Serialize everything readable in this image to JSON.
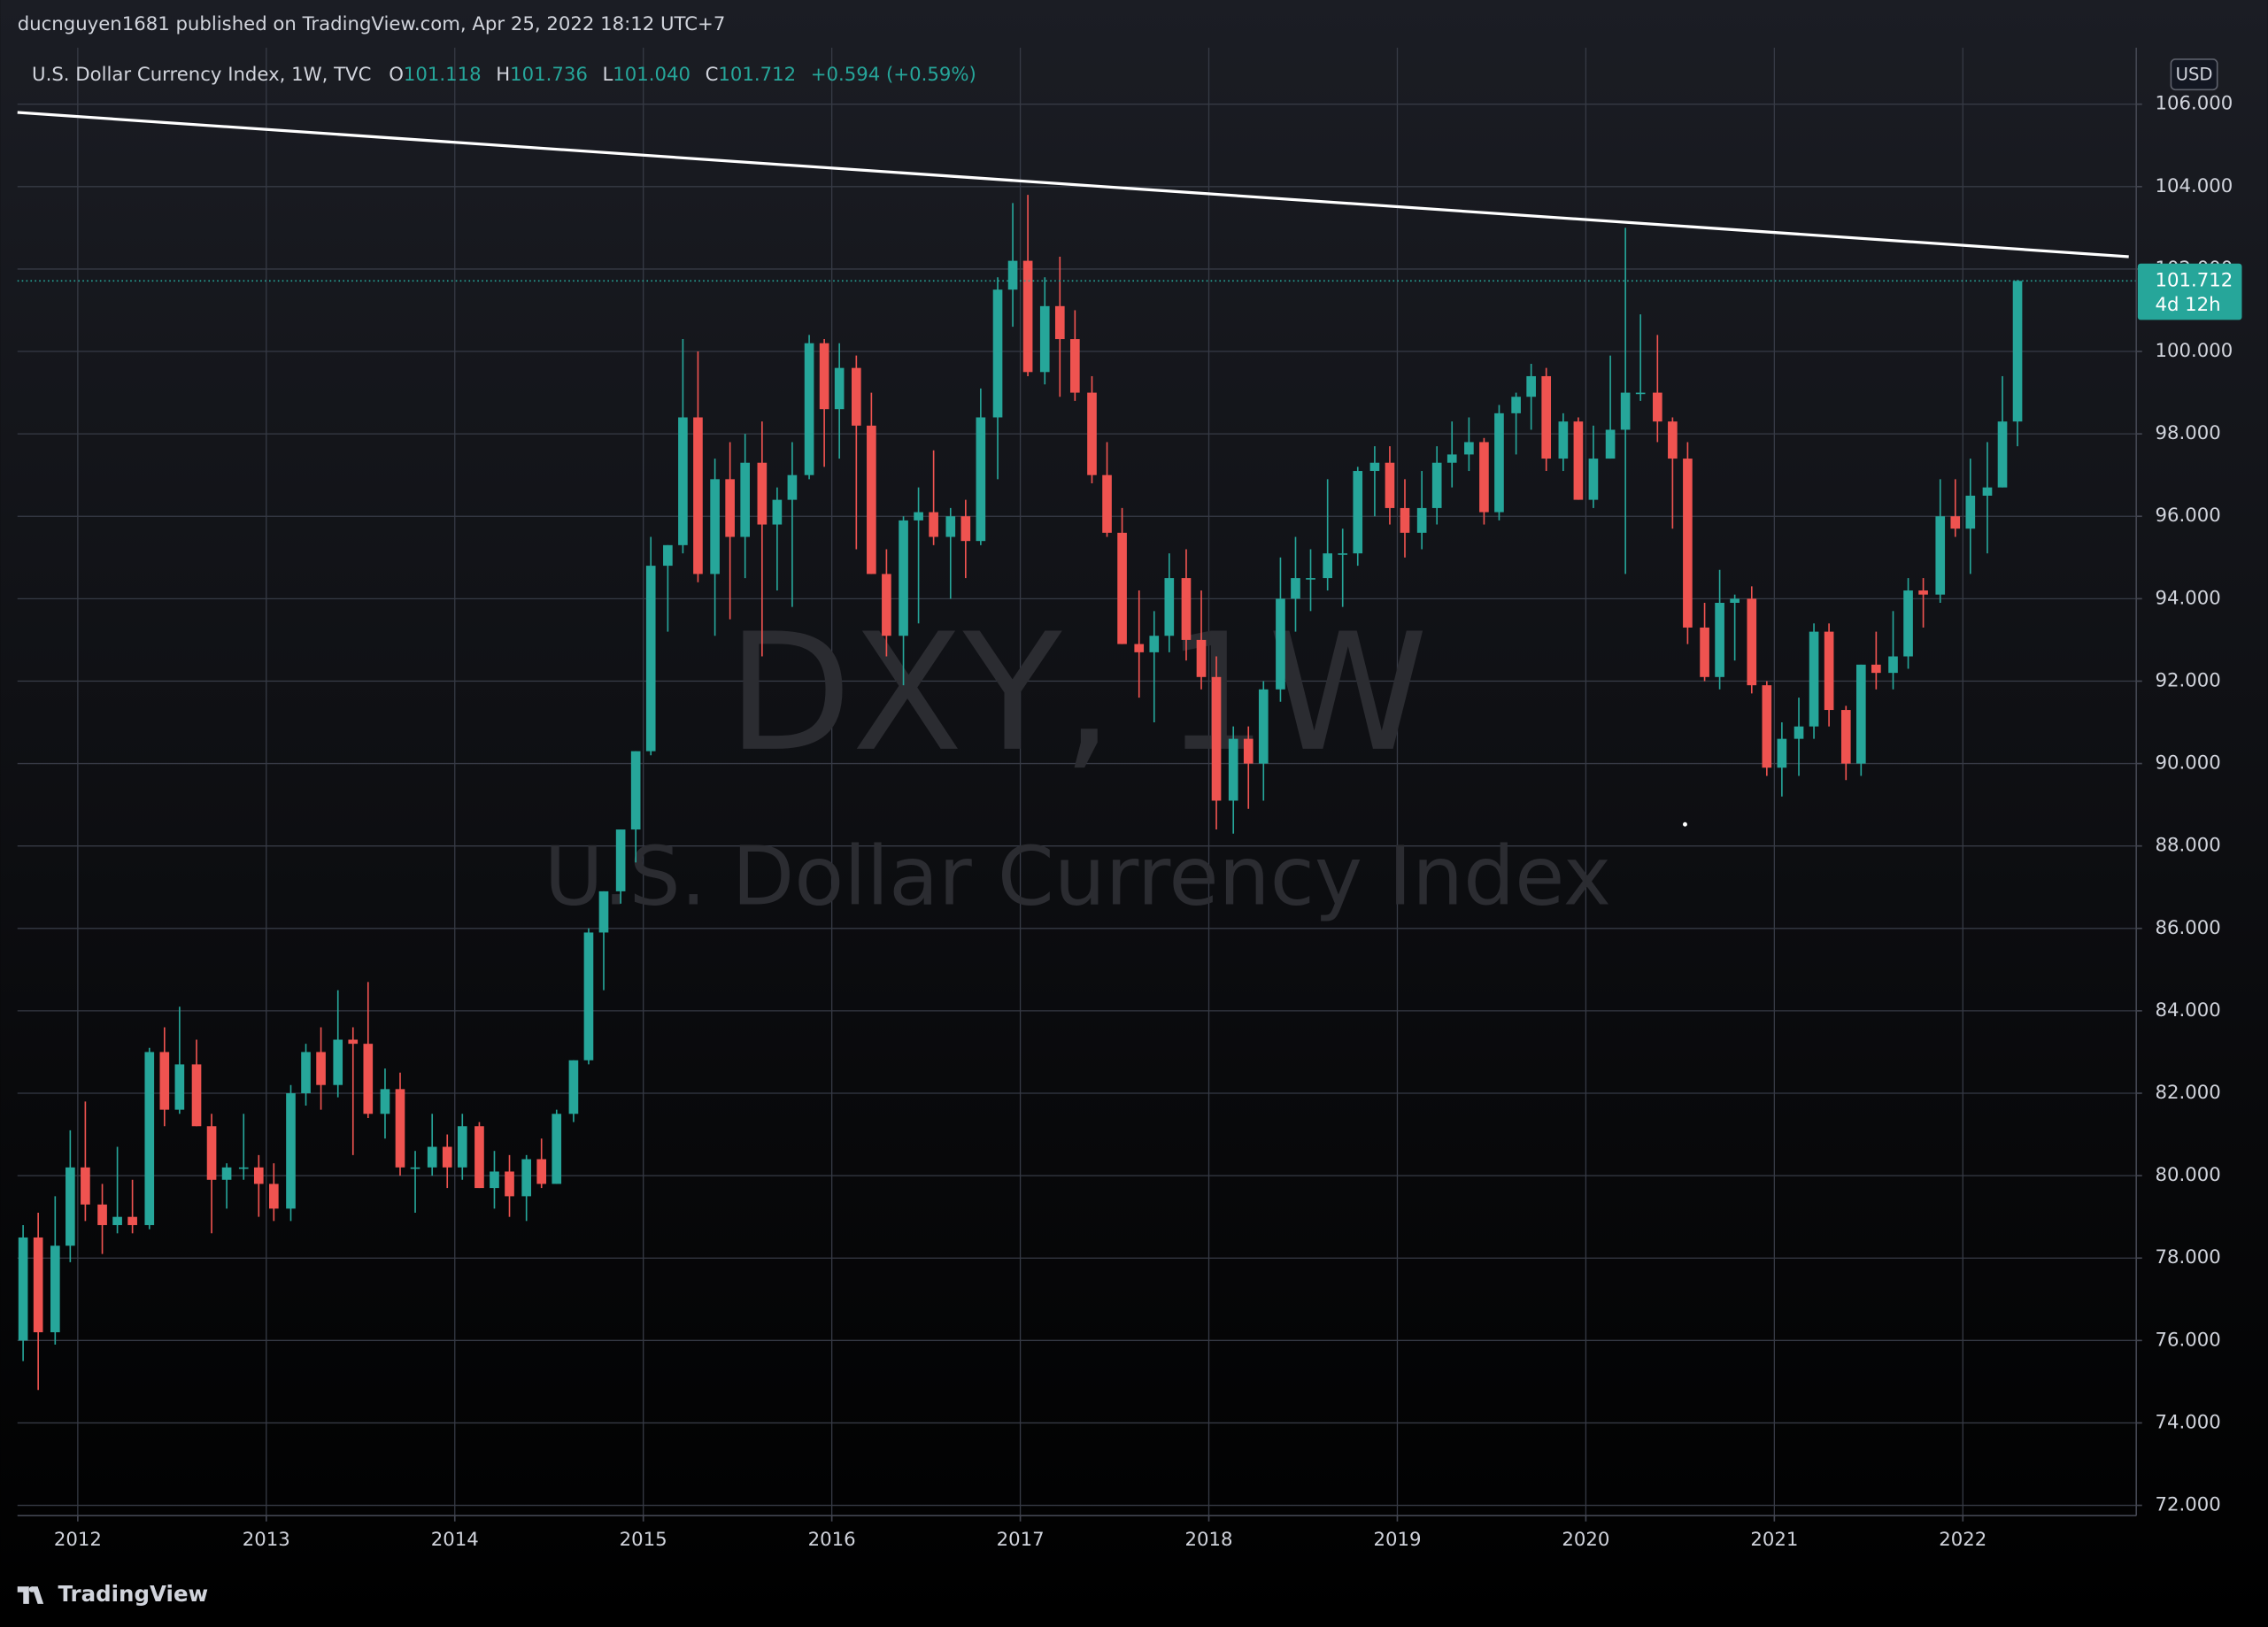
{
  "header": {
    "text": "ducnguyen1681 published on TradingView.com, Apr 25, 2022 18:12 UTC+7"
  },
  "legend": {
    "name": "U.S. Dollar Currency Index, 1W, TVC",
    "items": [
      {
        "label": "O",
        "value": "101.118"
      },
      {
        "label": "H",
        "value": "101.736"
      },
      {
        "label": "L",
        "value": "101.040"
      },
      {
        "label": "C",
        "value": "101.712"
      }
    ],
    "change": "+0.594 (+0.59%)"
  },
  "watermark": {
    "symbol": "DXY, 1W",
    "description": "U.S. Dollar Currency Index"
  },
  "currency": "USD",
  "countdown": "4d 12h",
  "footer": {
    "brand": "TradingView"
  },
  "chart_data": {
    "type": "candlestick",
    "up_color": "#26a69a",
    "down_color": "#ef5350",
    "grid": true,
    "xlim": [
      2011.68,
      2022.92
    ],
    "xticks": [
      2012,
      2013,
      2014,
      2015,
      2016,
      2017,
      2018,
      2019,
      2020,
      2021,
      2022
    ],
    "ylim": [
      71.75,
      107.37
    ],
    "yticks": [
      {
        "value": 72,
        "label": "72.000"
      },
      {
        "value": 74,
        "label": "74.000"
      },
      {
        "value": 76,
        "label": "76.000"
      },
      {
        "value": 78,
        "label": "78.000"
      },
      {
        "value": 80,
        "label": "80.000"
      },
      {
        "value": 82,
        "label": "82.000"
      },
      {
        "value": 84,
        "label": "84.000"
      },
      {
        "value": 86,
        "label": "86.000"
      },
      {
        "value": 88,
        "label": "88.000"
      },
      {
        "value": 90,
        "label": "90.000"
      },
      {
        "value": 92,
        "label": "92.000"
      },
      {
        "value": 94,
        "label": "94.000"
      },
      {
        "value": 96,
        "label": "96.000"
      },
      {
        "value": 98,
        "label": "98.000"
      },
      {
        "value": 100,
        "label": "100.000"
      },
      {
        "value": 102,
        "label": "102.000"
      },
      {
        "value": 104,
        "label": "104.000"
      },
      {
        "value": 106,
        "label": "106.000"
      }
    ],
    "x": [
      2011.71,
      2011.79,
      2011.88,
      2011.96,
      2012.04,
      2012.13,
      2012.21,
      2012.29,
      2012.38,
      2012.46,
      2012.54,
      2012.63,
      2012.71,
      2012.79,
      2012.88,
      2012.96,
      2013.04,
      2013.13,
      2013.21,
      2013.29,
      2013.38,
      2013.46,
      2013.54,
      2013.63,
      2013.71,
      2013.79,
      2013.88,
      2013.96,
      2014.04,
      2014.13,
      2014.21,
      2014.29,
      2014.38,
      2014.46,
      2014.54,
      2014.63,
      2014.71,
      2014.79,
      2014.88,
      2014.96,
      2015.04,
      2015.13,
      2015.21,
      2015.29,
      2015.38,
      2015.46,
      2015.54,
      2015.63,
      2015.71,
      2015.79,
      2015.88,
      2015.96,
      2016.04,
      2016.13,
      2016.21,
      2016.29,
      2016.38,
      2016.46,
      2016.54,
      2016.63,
      2016.71,
      2016.79,
      2016.88,
      2016.96,
      2017.04,
      2017.13,
      2017.21,
      2017.29,
      2017.38,
      2017.46,
      2017.54,
      2017.63,
      2017.71,
      2017.79,
      2017.88,
      2017.96,
      2018.04,
      2018.13,
      2018.21,
      2018.29,
      2018.38,
      2018.46,
      2018.54,
      2018.63,
      2018.71,
      2018.79,
      2018.88,
      2018.96,
      2019.04,
      2019.13,
      2019.21,
      2019.29,
      2019.38,
      2019.46,
      2019.54,
      2019.63,
      2019.71,
      2019.79,
      2019.88,
      2019.96,
      2020.04,
      2020.13,
      2020.21,
      2020.29,
      2020.38,
      2020.46,
      2020.54,
      2020.63,
      2020.71,
      2020.79,
      2020.88,
      2020.96,
      2021.04,
      2021.13,
      2021.21,
      2021.29,
      2021.38,
      2021.46,
      2021.54,
      2021.63,
      2021.71,
      2021.79,
      2021.88,
      2021.96,
      2022.04,
      2022.13,
      2022.21,
      2022.29
    ],
    "open": [
      76.0,
      78.5,
      76.2,
      78.3,
      80.2,
      79.3,
      78.8,
      79.0,
      78.8,
      83.0,
      81.6,
      82.7,
      81.2,
      79.9,
      80.2,
      80.2,
      79.8,
      79.2,
      82.0,
      83.0,
      82.2,
      83.3,
      83.2,
      81.5,
      82.1,
      80.2,
      80.2,
      80.7,
      80.2,
      81.2,
      79.7,
      80.1,
      79.5,
      80.4,
      79.8,
      81.5,
      82.8,
      85.9,
      86.9,
      88.4,
      90.3,
      94.8,
      95.3,
      98.4,
      94.6,
      96.9,
      95.5,
      97.3,
      95.8,
      96.4,
      97.0,
      100.2,
      98.6,
      99.6,
      98.2,
      94.6,
      93.1,
      95.9,
      96.1,
      95.5,
      96.0,
      95.4,
      98.4,
      101.5,
      102.2,
      99.5,
      101.1,
      100.3,
      99.0,
      97.0,
      95.6,
      92.9,
      92.7,
      93.1,
      94.5,
      93.0,
      92.1,
      89.1,
      90.6,
      90.0,
      91.8,
      94.0,
      94.5,
      94.5,
      95.1,
      95.1,
      97.1,
      97.3,
      96.2,
      95.6,
      96.2,
      97.3,
      97.5,
      97.8,
      96.1,
      98.5,
      98.9,
      99.4,
      97.4,
      98.3,
      96.4,
      97.4,
      98.1,
      99.0,
      99.0,
      98.3,
      97.4,
      93.3,
      92.1,
      93.9,
      94.0,
      91.9,
      89.9,
      90.6,
      90.9,
      93.2,
      91.3,
      90.0,
      92.4,
      92.2,
      92.6,
      94.2,
      94.1,
      96.0,
      95.7,
      96.5,
      96.7,
      98.3
    ],
    "high": [
      78.8,
      79.1,
      79.5,
      81.1,
      81.8,
      79.8,
      80.7,
      79.9,
      83.1,
      83.6,
      84.1,
      83.3,
      81.5,
      80.3,
      81.5,
      80.5,
      80.3,
      82.2,
      83.2,
      83.6,
      84.5,
      83.6,
      84.7,
      82.6,
      82.5,
      80.6,
      81.5,
      81.0,
      81.5,
      81.3,
      80.6,
      80.5,
      80.5,
      80.9,
      81.6,
      82.8,
      86.0,
      86.9,
      88.4,
      90.3,
      95.5,
      95.3,
      100.3,
      100.0,
      97.4,
      97.8,
      98.0,
      98.3,
      96.7,
      97.8,
      100.4,
      100.3,
      100.2,
      99.9,
      99.0,
      95.2,
      96.0,
      96.7,
      97.6,
      96.2,
      96.4,
      99.1,
      101.8,
      103.6,
      103.8,
      101.8,
      102.3,
      101.0,
      99.4,
      97.8,
      96.2,
      94.2,
      93.7,
      95.1,
      95.2,
      94.2,
      92.6,
      90.9,
      90.9,
      92.0,
      95.0,
      95.5,
      95.2,
      96.9,
      95.7,
      97.2,
      97.7,
      97.7,
      96.9,
      97.1,
      97.7,
      98.3,
      98.4,
      97.9,
      98.7,
      99.0,
      99.7,
      99.6,
      98.5,
      98.4,
      98.2,
      99.9,
      103.0,
      100.9,
      100.4,
      98.4,
      97.8,
      93.9,
      94.7,
      94.1,
      94.3,
      92.0,
      91.0,
      91.6,
      93.4,
      93.4,
      91.4,
      92.4,
      93.2,
      93.7,
      94.5,
      94.5,
      96.9,
      96.9,
      97.4,
      97.8,
      99.4,
      101.736
    ],
    "low": [
      75.5,
      74.8,
      75.9,
      77.9,
      78.9,
      78.1,
      78.6,
      78.6,
      78.7,
      81.2,
      81.5,
      81.2,
      78.6,
      79.2,
      79.9,
      79.0,
      78.9,
      78.9,
      81.7,
      81.6,
      81.9,
      80.5,
      81.4,
      80.9,
      80.0,
      79.1,
      80.0,
      79.7,
      79.9,
      79.7,
      79.2,
      79.0,
      78.9,
      79.7,
      79.8,
      81.3,
      82.7,
      84.5,
      86.6,
      87.6,
      90.2,
      93.2,
      95.1,
      94.4,
      93.1,
      93.5,
      94.5,
      92.6,
      94.2,
      93.8,
      96.9,
      97.2,
      97.4,
      95.2,
      94.6,
      92.6,
      91.9,
      93.4,
      95.3,
      94.0,
      94.5,
      95.3,
      96.9,
      100.6,
      99.4,
      99.2,
      98.9,
      98.8,
      96.8,
      95.5,
      92.9,
      91.6,
      91.0,
      92.7,
      92.5,
      91.8,
      88.4,
      88.3,
      88.9,
      89.1,
      91.5,
      93.2,
      93.7,
      94.2,
      93.8,
      94.8,
      96.0,
      95.8,
      95.0,
      95.2,
      95.8,
      96.7,
      97.1,
      95.8,
      95.9,
      97.5,
      98.1,
      97.1,
      97.1,
      96.4,
      96.2,
      97.4,
      94.6,
      98.8,
      97.8,
      95.7,
      92.9,
      92.0,
      91.8,
      92.5,
      91.7,
      89.7,
      89.2,
      89.7,
      90.6,
      90.9,
      89.6,
      89.7,
      91.8,
      91.8,
      92.3,
      93.3,
      93.9,
      95.5,
      94.6,
      95.1,
      96.7,
      97.7
    ],
    "close": [
      78.5,
      76.2,
      78.3,
      80.2,
      79.3,
      78.8,
      79.0,
      78.8,
      83.0,
      81.6,
      82.7,
      81.2,
      79.9,
      80.2,
      80.2,
      79.8,
      79.2,
      82.0,
      83.0,
      82.2,
      83.3,
      83.2,
      81.5,
      82.1,
      80.2,
      80.2,
      80.7,
      80.2,
      81.2,
      79.7,
      80.1,
      79.5,
      80.4,
      79.8,
      81.5,
      82.8,
      85.9,
      86.9,
      88.4,
      90.3,
      94.8,
      95.3,
      98.4,
      94.6,
      96.9,
      95.5,
      97.3,
      95.8,
      96.4,
      97.0,
      100.2,
      98.6,
      99.6,
      98.2,
      94.6,
      93.1,
      95.9,
      96.1,
      95.5,
      96.0,
      95.4,
      98.4,
      101.5,
      102.2,
      99.5,
      101.1,
      100.3,
      99.0,
      97.0,
      95.6,
      92.9,
      92.7,
      93.1,
      94.5,
      93.0,
      92.1,
      89.1,
      90.6,
      90.0,
      91.8,
      94.0,
      94.5,
      94.5,
      95.1,
      95.1,
      97.1,
      97.3,
      96.2,
      95.6,
      96.2,
      97.3,
      97.5,
      97.8,
      96.1,
      98.5,
      98.9,
      99.4,
      97.4,
      98.3,
      96.4,
      97.4,
      98.1,
      99.0,
      99.0,
      98.3,
      97.4,
      93.3,
      92.1,
      93.9,
      94.0,
      91.9,
      89.9,
      90.6,
      90.9,
      93.2,
      91.3,
      90.0,
      92.4,
      92.2,
      92.6,
      94.2,
      94.1,
      96.0,
      95.7,
      96.5,
      96.7,
      98.3,
      101.712
    ],
    "trendline": {
      "x": [
        2011.68,
        2022.88
      ],
      "y": [
        105.8,
        102.3
      ],
      "color": "#ffffff"
    }
  }
}
